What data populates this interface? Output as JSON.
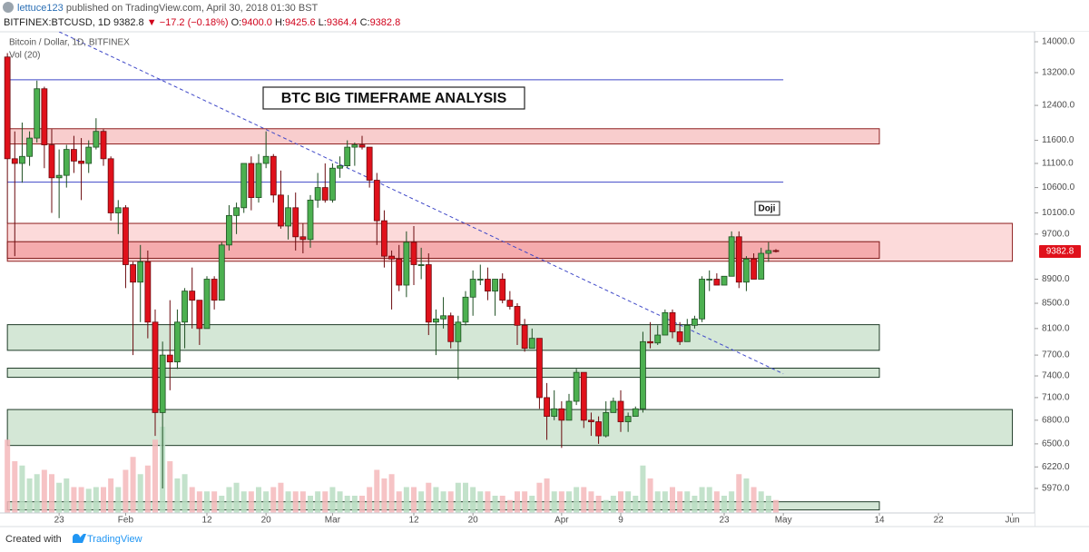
{
  "header": {
    "author": "lettuce123",
    "published": "published on TradingView.com, April 30, 2018 01:30 BST",
    "symbol": "BITFINEX:BTCUSD, 1D",
    "price": "9382.8",
    "change": "▼ −17.2 (−0.18%)",
    "ohlc": [
      {
        "label": "O:",
        "value": "9400.0"
      },
      {
        "label": "H:",
        "value": "9425.6"
      },
      {
        "label": "L:",
        "value": "9364.4"
      },
      {
        "label": "C:",
        "value": "9382.8"
      }
    ]
  },
  "chart_data": {
    "type": "candlestick",
    "title": "Bitcoin / Dollar, 1D, BITFINEX",
    "indicator": "Vol (20)",
    "log_scale": true,
    "grid": false,
    "up_color": "#4cb050",
    "down_color": "#e0111b",
    "up_volume_color": "#b9ddc2",
    "down_volume_color": "#f4b9bb",
    "xlim": [
      "2018-01-15",
      "2018-06-04"
    ],
    "ylim": [
      5697,
      14270
    ],
    "yticks": [
      {
        "value": 5970,
        "label": "5970.0"
      },
      {
        "value": 6220,
        "label": "6220.0"
      },
      {
        "value": 6500,
        "label": "6500.0"
      },
      {
        "value": 6800,
        "label": "6800.0"
      },
      {
        "value": 7100,
        "label": "7100.0"
      },
      {
        "value": 7400,
        "label": "7400.0"
      },
      {
        "value": 7700,
        "label": "7700.0"
      },
      {
        "value": 8100,
        "label": "8100.0"
      },
      {
        "value": 8500,
        "label": "8500.0"
      },
      {
        "value": 8900,
        "label": "8900.0"
      },
      {
        "value": 9700,
        "label": "9700.0"
      },
      {
        "value": 10100,
        "label": "10100.0"
      },
      {
        "value": 10600,
        "label": "10600.0"
      },
      {
        "value": 11100,
        "label": "11100.0"
      },
      {
        "value": 11600,
        "label": "11600.0"
      },
      {
        "value": 12400,
        "label": "12400.0"
      },
      {
        "value": 13200,
        "label": "13200.0"
      },
      {
        "value": 14000,
        "label": "14000.0"
      }
    ],
    "xticks": [
      {
        "value": "2018-01-23",
        "label": "23"
      },
      {
        "value": "2018-02-01",
        "label": "Feb"
      },
      {
        "value": "2018-02-12",
        "label": "12"
      },
      {
        "value": "2018-02-20",
        "label": "20"
      },
      {
        "value": "2018-03-01",
        "label": "Mar"
      },
      {
        "value": "2018-03-12",
        "label": "12"
      },
      {
        "value": "2018-03-20",
        "label": "20"
      },
      {
        "value": "2018-04-01",
        "label": "Apr"
      },
      {
        "value": "2018-04-09",
        "label": "9"
      },
      {
        "value": "2018-04-23",
        "label": "23"
      },
      {
        "value": "2018-05-01",
        "label": "May"
      },
      {
        "value": "2018-05-14",
        "label": "14"
      },
      {
        "value": "2018-05-22",
        "label": "22"
      },
      {
        "value": "2018-06-01",
        "label": "Jun"
      }
    ],
    "x": [
      "2018-01-16",
      "2018-01-17",
      "2018-01-18",
      "2018-01-19",
      "2018-01-20",
      "2018-01-21",
      "2018-01-22",
      "2018-01-23",
      "2018-01-24",
      "2018-01-25",
      "2018-01-26",
      "2018-01-27",
      "2018-01-28",
      "2018-01-29",
      "2018-01-30",
      "2018-01-31",
      "2018-02-01",
      "2018-02-02",
      "2018-02-03",
      "2018-02-04",
      "2018-02-05",
      "2018-02-06",
      "2018-02-07",
      "2018-02-08",
      "2018-02-09",
      "2018-02-10",
      "2018-02-11",
      "2018-02-12",
      "2018-02-13",
      "2018-02-14",
      "2018-02-15",
      "2018-02-16",
      "2018-02-17",
      "2018-02-18",
      "2018-02-19",
      "2018-02-20",
      "2018-02-21",
      "2018-02-22",
      "2018-02-23",
      "2018-02-24",
      "2018-02-25",
      "2018-02-26",
      "2018-02-27",
      "2018-02-28",
      "2018-03-01",
      "2018-03-02",
      "2018-03-03",
      "2018-03-04",
      "2018-03-05",
      "2018-03-06",
      "2018-03-07",
      "2018-03-08",
      "2018-03-09",
      "2018-03-10",
      "2018-03-11",
      "2018-03-12",
      "2018-03-13",
      "2018-03-14",
      "2018-03-15",
      "2018-03-16",
      "2018-03-17",
      "2018-03-18",
      "2018-03-19",
      "2018-03-20",
      "2018-03-21",
      "2018-03-22",
      "2018-03-23",
      "2018-03-24",
      "2018-03-25",
      "2018-03-26",
      "2018-03-27",
      "2018-03-28",
      "2018-03-29",
      "2018-03-30",
      "2018-03-31",
      "2018-04-01",
      "2018-04-02",
      "2018-04-03",
      "2018-04-04",
      "2018-04-05",
      "2018-04-06",
      "2018-04-07",
      "2018-04-08",
      "2018-04-09",
      "2018-04-10",
      "2018-04-11",
      "2018-04-12",
      "2018-04-13",
      "2018-04-14",
      "2018-04-15",
      "2018-04-16",
      "2018-04-17",
      "2018-04-18",
      "2018-04-19",
      "2018-04-20",
      "2018-04-21",
      "2018-04-22",
      "2018-04-23",
      "2018-04-24",
      "2018-04-25",
      "2018-04-26",
      "2018-04-27",
      "2018-04-28",
      "2018-04-29",
      "2018-04-30"
    ],
    "open": [
      13600,
      11200,
      11100,
      11250,
      11650,
      12800,
      11500,
      10800,
      10850,
      11400,
      11150,
      11100,
      11450,
      11800,
      11200,
      10100,
      10200,
      9150,
      8850,
      9200,
      8200,
      6900,
      7700,
      7600,
      8200,
      8700,
      8550,
      8100,
      8900,
      8550,
      9500,
      10050,
      10200,
      11100,
      10400,
      11100,
      11250,
      10450,
      9850,
      10200,
      9650,
      9600,
      10350,
      10600,
      10350,
      11000,
      11050,
      11450,
      11500,
      11450,
      10750,
      9950,
      9300,
      9250,
      8800,
      9550,
      9150,
      9150,
      8200,
      8250,
      8300,
      7900,
      8200,
      8600,
      8900,
      8900,
      8700,
      8900,
      8550,
      8450,
      8150,
      7800,
      7950,
      7100,
      6850,
      6950,
      6800,
      7050,
      7450,
      6800,
      6780,
      6600,
      6900,
      7050,
      6780,
      6850,
      6950,
      7900,
      7880,
      8000,
      8350,
      8050,
      7900,
      8150,
      8250,
      8900,
      8900,
      8800,
      8950,
      9650,
      8850,
      9250,
      8900,
      9350,
      9400
    ],
    "high": [
      13700,
      11800,
      12000,
      11800,
      13000,
      12850,
      11850,
      11400,
      11500,
      11700,
      11650,
      11600,
      12100,
      11850,
      11250,
      10350,
      10250,
      9200,
      9500,
      9400,
      8400,
      7900,
      8550,
      8400,
      8750,
      9100,
      8550,
      8950,
      8950,
      9550,
      10250,
      10300,
      11100,
      11250,
      11300,
      11800,
      11300,
      10950,
      10450,
      10500,
      9900,
      10450,
      10900,
      11100,
      11100,
      11250,
      11600,
      11550,
      11700,
      11450,
      10900,
      10150,
      9400,
      9500,
      9750,
      9850,
      9450,
      9350,
      8400,
      8600,
      8350,
      8300,
      8700,
      9050,
      9150,
      9100,
      8900,
      9000,
      8700,
      8500,
      8250,
      8100,
      7950,
      7300,
      7200,
      7050,
      7150,
      7500,
      7450,
      6900,
      6850,
      7050,
      7100,
      7200,
      6900,
      6980,
      8050,
      8200,
      8150,
      8400,
      8400,
      8200,
      8250,
      8300,
      8950,
      9050,
      9000,
      8950,
      9750,
      9750,
      9300,
      9350,
      9450,
      9550,
      9425.6
    ],
    "low": [
      9900,
      9300,
      10700,
      11050,
      11550,
      11000,
      10100,
      10000,
      10600,
      10900,
      10350,
      10900,
      11400,
      11050,
      9950,
      9700,
      8750,
      7700,
      8200,
      7950,
      6600,
      5970,
      7200,
      7500,
      7800,
      8100,
      7850,
      8100,
      8400,
      8550,
      9400,
      9700,
      10100,
      10150,
      10300,
      11000,
      10300,
      9800,
      9600,
      9400,
      9350,
      9450,
      10200,
      10300,
      10300,
      10800,
      11000,
      11050,
      11400,
      10600,
      9500,
      9100,
      8400,
      8700,
      8600,
      8800,
      8900,
      8000,
      7700,
      8100,
      7800,
      7350,
      8150,
      8300,
      8800,
      8550,
      8300,
      8500,
      8400,
      7850,
      7750,
      7800,
      6950,
      6550,
      6800,
      6450,
      6800,
      7000,
      6700,
      6600,
      6500,
      6580,
      6900,
      6650,
      6650,
      6850,
      6900,
      7800,
      7850,
      8000,
      7950,
      7850,
      7900,
      8100,
      8200,
      8700,
      8800,
      8800,
      8950,
      8750,
      8700,
      8900,
      8900,
      9200,
      9364.4
    ],
    "close": [
      11200,
      11100,
      11250,
      11650,
      12800,
      11500,
      10800,
      10850,
      11400,
      11150,
      11100,
      11450,
      11800,
      11200,
      10100,
      10200,
      9150,
      8850,
      9200,
      8200,
      6900,
      7700,
      7600,
      8200,
      8700,
      8550,
      8100,
      8900,
      8550,
      9500,
      10050,
      10200,
      11100,
      10400,
      11100,
      11250,
      10450,
      9850,
      10200,
      9650,
      9600,
      10350,
      10600,
      10350,
      11000,
      11050,
      11450,
      11500,
      11450,
      10750,
      9950,
      9300,
      9250,
      8800,
      9550,
      9150,
      9150,
      8200,
      8250,
      8300,
      7900,
      8200,
      8600,
      8900,
      8900,
      8700,
      8900,
      8550,
      8450,
      8150,
      7800,
      7950,
      7100,
      6850,
      6950,
      6800,
      7050,
      7450,
      6800,
      6780,
      6600,
      6900,
      7050,
      6780,
      6850,
      6950,
      7900,
      7880,
      8000,
      8350,
      8050,
      7900,
      8150,
      8250,
      8900,
      8900,
      8800,
      8950,
      9650,
      8850,
      9250,
      8900,
      9350,
      9400,
      9382.8
    ],
    "volume": [
      85,
      60,
      55,
      40,
      45,
      50,
      45,
      35,
      40,
      30,
      30,
      28,
      30,
      30,
      40,
      30,
      50,
      65,
      45,
      55,
      85,
      100,
      60,
      40,
      45,
      30,
      25,
      25,
      25,
      20,
      30,
      35,
      25,
      25,
      30,
      25,
      30,
      35,
      25,
      25,
      25,
      20,
      25,
      25,
      30,
      25,
      20,
      20,
      20,
      30,
      50,
      40,
      45,
      25,
      30,
      30,
      25,
      35,
      30,
      25,
      25,
      35,
      35,
      30,
      25,
      25,
      20,
      20,
      15,
      25,
      25,
      20,
      35,
      40,
      25,
      25,
      25,
      30,
      30,
      25,
      20,
      15,
      20,
      25,
      25,
      20,
      55,
      40,
      25,
      25,
      30,
      25,
      25,
      20,
      30,
      30,
      25,
      20,
      25,
      45,
      40,
      30,
      25,
      20,
      15
    ],
    "zones": [
      {
        "from": "2018-01-16",
        "to": "2018-05-14",
        "low": 11520,
        "high": 11860,
        "fill": "#f7c4c4",
        "stroke": "#8e1f1f"
      },
      {
        "from": "2018-01-16",
        "to": "2018-06-01",
        "low": 9210,
        "high": 9900,
        "fill": "#fbd3d3",
        "stroke": "#8e1f1f"
      },
      {
        "from": "2018-01-16",
        "to": "2018-05-14",
        "low": 9260,
        "high": 9560,
        "fill": "#f3a2a4",
        "stroke": "#7d1515"
      },
      {
        "from": "2018-01-16",
        "to": "2018-05-14",
        "low": 7770,
        "high": 8160,
        "fill": "#cde3cf",
        "stroke": "#1f3b27"
      },
      {
        "from": "2018-01-16",
        "to": "2018-05-14",
        "low": 7380,
        "high": 7510,
        "fill": "#cde3cf",
        "stroke": "#1f3b27"
      },
      {
        "from": "2018-01-16",
        "to": "2018-06-01",
        "low": 6480,
        "high": 6940,
        "fill": "#cde3cf",
        "stroke": "#1f3b27"
      },
      {
        "from": "2018-01-16",
        "to": "2018-05-14",
        "low": 5730,
        "high": 5820,
        "fill": "#cde3cf",
        "stroke": "#1f3b27"
      }
    ],
    "lines": [
      {
        "price": 13020,
        "from": "2018-01-16",
        "to": "2018-05-01",
        "color": "#3f48c8"
      },
      {
        "price": 10710,
        "from": "2018-01-16",
        "to": "2018-05-01",
        "color": "#3f48c8"
      }
    ],
    "trendline": {
      "dates": [
        "2018-01-23",
        "2018-05-01"
      ],
      "prices": [
        14270,
        7430
      ],
      "color": "#3f48c8"
    },
    "annotations": [
      "BTC BIG TIMEFRAME ANALYSIS",
      "Doji"
    ],
    "last_price": 9382.8
  },
  "footer": {
    "created": "Created with",
    "brand": "TradingView"
  }
}
